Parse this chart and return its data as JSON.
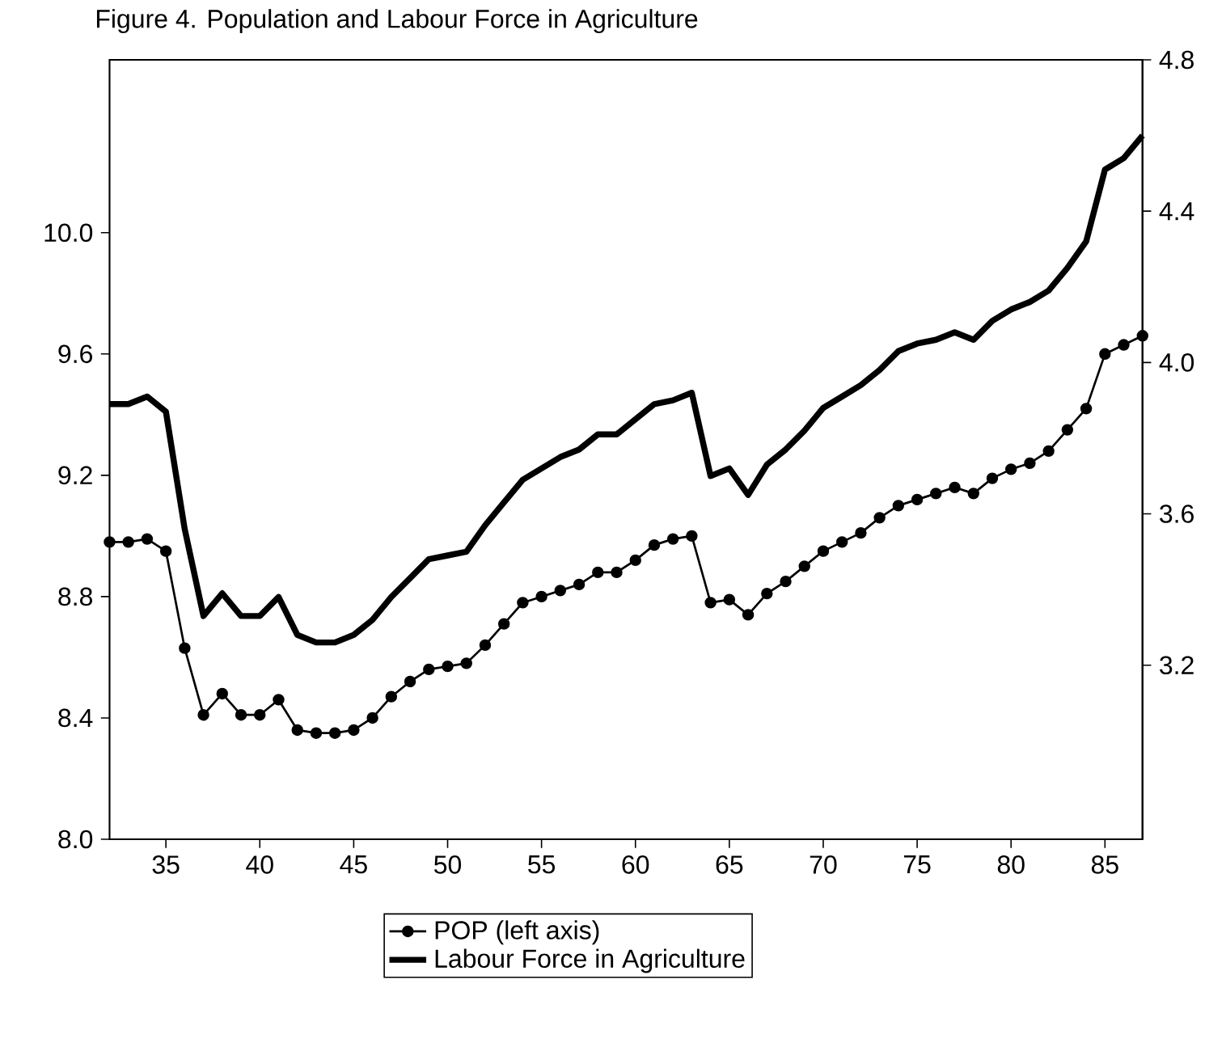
{
  "chart_data": {
    "type": "line",
    "title": "Figure 4. Population and Labour Force in Agriculture",
    "x": [
      32,
      33,
      34,
      35,
      36,
      37,
      38,
      39,
      40,
      41,
      42,
      43,
      44,
      45,
      46,
      47,
      48,
      49,
      50,
      51,
      52,
      53,
      54,
      55,
      56,
      57,
      58,
      59,
      60,
      61,
      62,
      63,
      64,
      65,
      66,
      67,
      68,
      69,
      70,
      71,
      72,
      73,
      74,
      75,
      76,
      77,
      78,
      79,
      80,
      81,
      82,
      83,
      84,
      85,
      86,
      87
    ],
    "xlim": [
      32,
      87
    ],
    "xticks": [
      35,
      40,
      45,
      50,
      55,
      60,
      65,
      70,
      75,
      80,
      85
    ],
    "ylim": [
      8.0,
      10.57
    ],
    "yticks": [
      {
        "value": 8.0,
        "label": "8.0"
      },
      {
        "value": 8.4,
        "label": "8.4"
      },
      {
        "value": 8.8,
        "label": "8.8"
      },
      {
        "value": 9.2,
        "label": "9.2"
      },
      {
        "value": 9.6,
        "label": "9.6"
      },
      {
        "value": 10.0,
        "label": "10.0"
      }
    ],
    "y2lim": [
      2.74,
      4.8
    ],
    "y2ticks": [
      {
        "value": 3.2,
        "label": "3.2"
      },
      {
        "value": 3.6,
        "label": "3.6"
      },
      {
        "value": 4.0,
        "label": "4.0"
      },
      {
        "value": 4.4,
        "label": "4.4"
      },
      {
        "value": 4.8,
        "label": "4.8"
      }
    ],
    "legend": "bottom",
    "grid": false,
    "series": [
      {
        "name": "POP (left axis)",
        "color": "#000000",
        "marker": "circle",
        "values": [
          8.98,
          8.98,
          8.99,
          8.95,
          8.63,
          8.41,
          8.48,
          8.41,
          8.41,
          8.46,
          8.36,
          8.35,
          8.35,
          8.36,
          8.4,
          8.47,
          8.52,
          8.56,
          8.57,
          8.58,
          8.64,
          8.71,
          8.78,
          8.8,
          8.82,
          8.84,
          8.88,
          8.88,
          8.92,
          8.97,
          8.99,
          9.0,
          8.78,
          8.79,
          8.74,
          8.81,
          8.85,
          8.9,
          8.95,
          8.98,
          9.01,
          9.06,
          9.1,
          9.12,
          9.14,
          9.16,
          9.14,
          9.19,
          9.22,
          9.24,
          9.28,
          9.35,
          9.42,
          9.6,
          9.63,
          9.66
        ]
      },
      {
        "name": "Labour Force in Agriculture",
        "color": "#000000",
        "axis": "y2",
        "marker": "none",
        "values": [
          3.89,
          3.89,
          3.91,
          3.87,
          3.56,
          3.33,
          3.39,
          3.33,
          3.33,
          3.38,
          3.28,
          3.26,
          3.26,
          3.28,
          3.32,
          3.38,
          3.43,
          3.48,
          3.49,
          3.5,
          3.57,
          3.63,
          3.69,
          3.72,
          3.75,
          3.77,
          3.81,
          3.81,
          3.85,
          3.89,
          3.9,
          3.92,
          3.7,
          3.72,
          3.65,
          3.73,
          3.77,
          3.82,
          3.88,
          3.91,
          3.94,
          3.98,
          4.03,
          4.05,
          4.06,
          4.08,
          4.06,
          4.11,
          4.14,
          4.16,
          4.19,
          4.25,
          4.32,
          4.51,
          4.54,
          4.6
        ]
      }
    ]
  }
}
